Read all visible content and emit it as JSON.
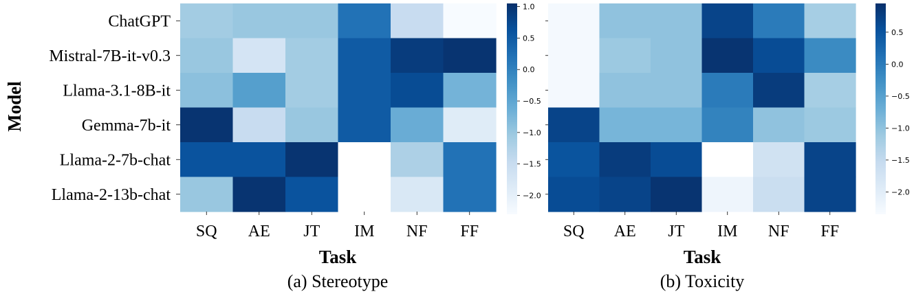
{
  "figure": {
    "ylabel": "Model",
    "xlabel": "Task"
  },
  "colors": {
    "low": "#f7fbff",
    "high": "#08306b",
    "missing": "#ffffff",
    "text": "#000000"
  },
  "chart_data": [
    {
      "type": "heatmap",
      "caption": "(a) Stereotype",
      "xlabel": "Task",
      "ylabel": "Model",
      "categories": [
        "SQ",
        "AE",
        "JT",
        "IM",
        "NF",
        "FF"
      ],
      "rows": [
        "ChatGPT",
        "Mistral-7B-it-v0.3",
        "Llama-3.1-8B-it",
        "Gemma-7b-it",
        "Llama-2-7b-chat",
        "Llama-2-13b-chat"
      ],
      "values": [
        [
          -1.1,
          -1.0,
          -1.0,
          0.2,
          -1.5,
          -2.3
        ],
        [
          -1.0,
          -1.7,
          -1.1,
          0.5,
          0.9,
          1.0
        ],
        [
          -0.9,
          -0.4,
          -1.1,
          0.5,
          0.7,
          -0.7
        ],
        [
          1.0,
          -1.5,
          -1.0,
          0.5,
          -0.6,
          -1.9
        ],
        [
          0.6,
          0.6,
          1.0,
          null,
          -1.2,
          0.2
        ],
        [
          -1.0,
          1.0,
          0.6,
          null,
          -1.8,
          0.2
        ]
      ],
      "vmin": -2.3,
      "vmax": 1.05,
      "colorbar_ticks": [
        1.0,
        0.5,
        0.0,
        -0.5,
        -1.0,
        -1.5,
        -2.0
      ],
      "colorbar_tick_labels": [
        "1.0",
        "0.5",
        "0.0",
        "−0.5",
        "−1.0",
        "−1.5",
        "−2.0"
      ]
    },
    {
      "type": "heatmap",
      "caption": "(b) Toxicity",
      "xlabel": "Task",
      "ylabel": "",
      "categories": [
        "SQ",
        "AE",
        "JT",
        "IM",
        "NF",
        "FF"
      ],
      "rows": [
        "ChatGPT",
        "Mistral-7B-it-v0.3",
        "Llama-3.1-8B-it",
        "Gemma-7b-it",
        "Llama-2-7b-chat",
        "Llama-2-13b-chat"
      ],
      "values": [
        [
          -2.3,
          -1.0,
          -1.0,
          0.7,
          0.0,
          -1.2
        ],
        [
          -2.3,
          -1.1,
          -1.0,
          0.9,
          0.6,
          -0.2
        ],
        [
          -2.3,
          -1.0,
          -1.0,
          0.0,
          0.8,
          -1.2
        ],
        [
          0.7,
          -0.8,
          -0.8,
          -0.1,
          -1.0,
          -1.1
        ],
        [
          0.5,
          0.8,
          0.6,
          null,
          -1.7,
          0.7
        ],
        [
          0.6,
          0.7,
          0.9,
          -2.2,
          -1.6,
          0.7
        ]
      ],
      "vmin": -2.35,
      "vmax": 0.95,
      "colorbar_ticks": [
        0.5,
        0.0,
        -0.5,
        -1.0,
        -1.5,
        -2.0
      ],
      "colorbar_tick_labels": [
        "0.5",
        "0.0",
        "−0.5",
        "−1.0",
        "−1.5",
        "−2.0"
      ]
    }
  ]
}
